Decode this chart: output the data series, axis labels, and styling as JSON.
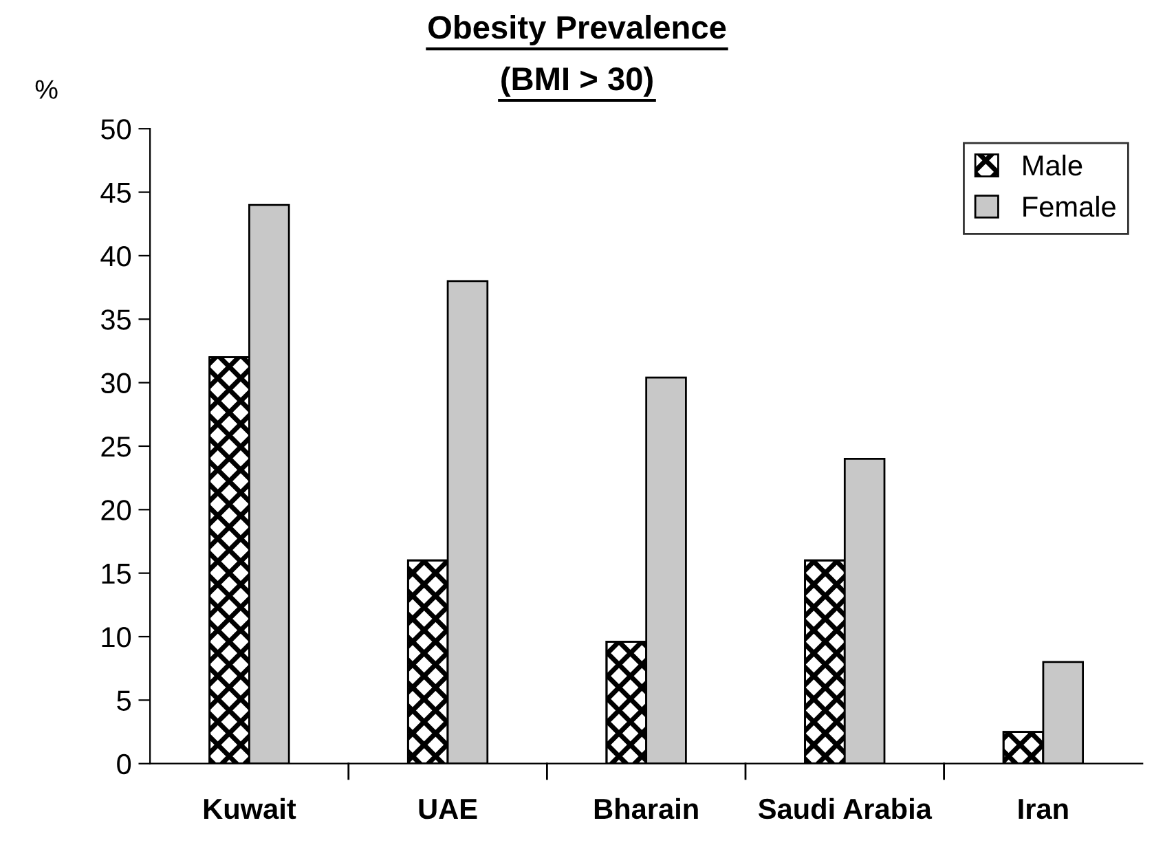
{
  "chart_data": {
    "type": "bar",
    "title": "Obesity Prevalence",
    "subtitle": "(BMI > 30)",
    "ylabel": "%",
    "categories": [
      "Kuwait",
      "UAE",
      "Bharain",
      "Saudi Arabia",
      "Iran"
    ],
    "series": [
      {
        "name": "Male",
        "color": "#000000",
        "values": [
          32,
          16,
          9.6,
          16,
          2.5
        ]
      },
      {
        "name": "Female",
        "color": "#c8c8c8",
        "values": [
          44,
          38,
          30.4,
          24,
          8
        ]
      }
    ],
    "ylim": [
      0,
      50
    ],
    "yticks": [
      0,
      5,
      10,
      15,
      20,
      25,
      30,
      35,
      40,
      45,
      50
    ],
    "grid": false,
    "legend": "top right"
  }
}
